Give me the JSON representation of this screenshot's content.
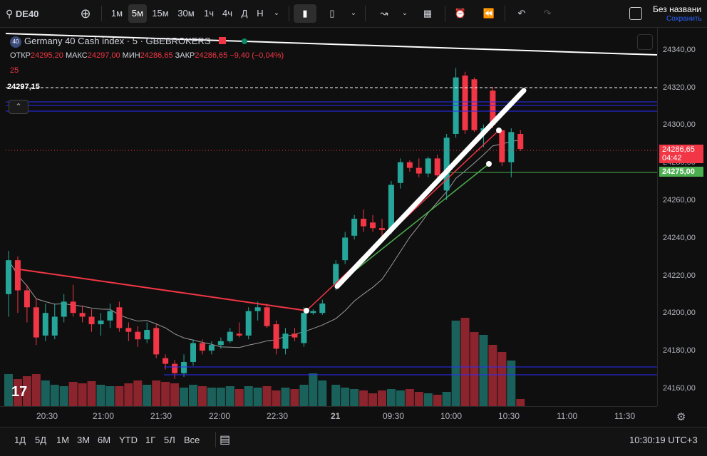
{
  "topbar": {
    "symbol": "DE40",
    "intervals": [
      "1м",
      "5м",
      "15м",
      "30м",
      "1ч",
      "4ч",
      "Д",
      "Н"
    ],
    "active_interval": "5м",
    "layout_name": "Без названи",
    "layout_save": "Сохранить"
  },
  "legend": {
    "badge": "40",
    "title": "Germany 40 Cash index · 5 · GBEBROKERS",
    "open_label": "ОТКР",
    "open": "24295,20",
    "high_label": "МАКС",
    "high": "24297,00",
    "low_label": "МИН",
    "low": "24286,65",
    "close_label": "ЗАКР",
    "close": "24286,65",
    "change": "−9,40 (−0,04%)",
    "volume": "25"
  },
  "hline_label": "24297,15",
  "price_axis": {
    "ticks": [
      "24340,00",
      "24320,00",
      "24300,00",
      "24280,00",
      "24260,00",
      "24240,00",
      "24220,00",
      "24200,00",
      "24180,00",
      "24160,00"
    ],
    "last_price": "24286,65",
    "countdown": "04:42",
    "green_level": "24275,00"
  },
  "time_axis": [
    "20:30",
    "21:00",
    "21:30",
    "22:00",
    "22:30",
    "21",
    "09:30",
    "10:00",
    "10:30",
    "11:00",
    "11:30"
  ],
  "bottombar": {
    "ranges": [
      "1Д",
      "5Д",
      "1М",
      "3М",
      "6М",
      "YTD",
      "1Г",
      "5Л",
      "Все"
    ],
    "clock": "10:30:19 UTC+3"
  },
  "colors": {
    "up": "#26a69a",
    "down": "#f23645",
    "bg": "#0f0f0f"
  },
  "chart_data": {
    "type": "candlestick",
    "candles": [
      {
        "o": 24210,
        "h": 24233,
        "l": 24198,
        "c": 24228
      },
      {
        "o": 24228,
        "h": 24230,
        "l": 24200,
        "c": 24212
      },
      {
        "o": 24212,
        "h": 24215,
        "l": 24195,
        "c": 24203
      },
      {
        "o": 24203,
        "h": 24208,
        "l": 24183,
        "c": 24187
      },
      {
        "o": 24188,
        "h": 24205,
        "l": 24185,
        "c": 24200
      },
      {
        "o": 24188,
        "h": 24205,
        "l": 24186,
        "c": 24198
      },
      {
        "o": 24198,
        "h": 24210,
        "l": 24195,
        "c": 24206
      },
      {
        "o": 24206,
        "h": 24215,
        "l": 24198,
        "c": 24200
      },
      {
        "o": 24200,
        "h": 24204,
        "l": 24195,
        "c": 24198
      },
      {
        "o": 24198,
        "h": 24202,
        "l": 24190,
        "c": 24194
      },
      {
        "o": 24194,
        "h": 24200,
        "l": 24188,
        "c": 24196
      },
      {
        "o": 24196,
        "h": 24205,
        "l": 24192,
        "c": 24201
      },
      {
        "o": 24203,
        "h": 24206,
        "l": 24190,
        "c": 24192
      },
      {
        "o": 24192,
        "h": 24195,
        "l": 24185,
        "c": 24190
      },
      {
        "o": 24190,
        "h": 24193,
        "l": 24182,
        "c": 24186
      },
      {
        "o": 24186,
        "h": 24195,
        "l": 24184,
        "c": 24191
      },
      {
        "o": 24192,
        "h": 24194,
        "l": 24176,
        "c": 24178
      },
      {
        "o": 24176,
        "h": 24178,
        "l": 24170,
        "c": 24173
      },
      {
        "o": 24173,
        "h": 24175,
        "l": 24165,
        "c": 24168
      },
      {
        "o": 24168,
        "h": 24178,
        "l": 24166,
        "c": 24174
      },
      {
        "o": 24174,
        "h": 24186,
        "l": 24172,
        "c": 24184
      },
      {
        "o": 24184,
        "h": 24186,
        "l": 24178,
        "c": 24180
      },
      {
        "o": 24180,
        "h": 24185,
        "l": 24178,
        "c": 24183
      },
      {
        "o": 24183,
        "h": 24187,
        "l": 24181,
        "c": 24185
      },
      {
        "o": 24185,
        "h": 24192,
        "l": 24184,
        "c": 24190
      },
      {
        "o": 24189,
        "h": 24195,
        "l": 24187,
        "c": 24188
      },
      {
        "o": 24188,
        "h": 24203,
        "l": 24186,
        "c": 24201
      },
      {
        "o": 24201,
        "h": 24206,
        "l": 24196,
        "c": 24203
      },
      {
        "o": 24203,
        "h": 24205,
        "l": 24192,
        "c": 24193
      },
      {
        "o": 24194,
        "h": 24196,
        "l": 24178,
        "c": 24181
      },
      {
        "o": 24181,
        "h": 24192,
        "l": 24178,
        "c": 24189
      },
      {
        "o": 24189,
        "h": 24192,
        "l": 24185,
        "c": 24187
      },
      {
        "o": 24184,
        "h": 24203,
        "l": 24182,
        "c": 24200
      },
      {
        "o": 24200,
        "h": 24202,
        "l": 24199,
        "c": 24201
      },
      {
        "o": 24200,
        "h": 24207,
        "l": 24199,
        "c": 24205
      },
      {
        "o": 24215,
        "h": 24228,
        "l": 24212,
        "c": 24226
      },
      {
        "o": 24228,
        "h": 24243,
        "l": 24226,
        "c": 24240
      },
      {
        "o": 24241,
        "h": 24252,
        "l": 24239,
        "c": 24250
      },
      {
        "o": 24250,
        "h": 24255,
        "l": 24243,
        "c": 24246
      },
      {
        "o": 24248,
        "h": 24252,
        "l": 24243,
        "c": 24245
      },
      {
        "o": 24245,
        "h": 24250,
        "l": 24240,
        "c": 24244
      },
      {
        "o": 24244,
        "h": 24270,
        "l": 24242,
        "c": 24268
      },
      {
        "o": 24269,
        "h": 24282,
        "l": 24266,
        "c": 24280
      },
      {
        "o": 24280,
        "h": 24281,
        "l": 24275,
        "c": 24277
      },
      {
        "o": 24277,
        "h": 24282,
        "l": 24272,
        "c": 24274
      },
      {
        "o": 24274,
        "h": 24283,
        "l": 24272,
        "c": 24282
      },
      {
        "o": 24282,
        "h": 24284,
        "l": 24272,
        "c": 24273
      },
      {
        "o": 24265,
        "h": 24295,
        "l": 24260,
        "c": 24293
      },
      {
        "o": 24295,
        "h": 24330,
        "l": 24293,
        "c": 24325
      },
      {
        "o": 24326,
        "h": 24328,
        "l": 24295,
        "c": 24297
      },
      {
        "o": 24324,
        "h": 24325,
        "l": 24296,
        "c": 24297
      },
      {
        "o": 24296,
        "h": 24300,
        "l": 24288,
        "c": 24298
      },
      {
        "o": 24318,
        "h": 24320,
        "l": 24298,
        "c": 24300
      },
      {
        "o": 24297,
        "h": 24297,
        "l": 24278,
        "c": 24280
      },
      {
        "o": 24280,
        "h": 24298,
        "l": 24272,
        "c": 24296
      },
      {
        "o": 24295,
        "h": 24297,
        "l": 24286,
        "c": 24287
      }
    ]
  }
}
